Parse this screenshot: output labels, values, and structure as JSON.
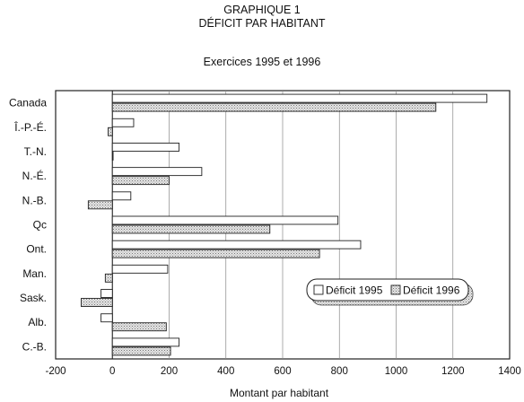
{
  "header": {
    "line1": "GRAPHIQUE 1",
    "line2": "DÉFICIT PAR HABITANT",
    "subtitle": "Exercices 1995 et 1996"
  },
  "chart_data": {
    "type": "bar",
    "orientation": "horizontal",
    "title": "GRAPHIQUE 1 — DÉFICIT PAR HABITANT",
    "subtitle": "Exercices 1995 et 1996",
    "xlabel": "Montant par habitant",
    "ylabel": "",
    "xlim": [
      -200,
      1400
    ],
    "xticks": [
      -200,
      0,
      200,
      400,
      600,
      800,
      1000,
      1200,
      1400
    ],
    "grid": true,
    "legend_position": "lower-right",
    "categories": [
      "Canada",
      "Î.-P.-É.",
      "T.-N.",
      "N.-É.",
      "N.-B.",
      "Qc",
      "Ont.",
      "Man.",
      "Sask.",
      "Alb.",
      "C.-B."
    ],
    "series": [
      {
        "name": "Déficit 1995",
        "pattern": "white",
        "values": [
          1320,
          75,
          235,
          315,
          65,
          795,
          875,
          195,
          -40,
          -40,
          235
        ]
      },
      {
        "name": "Déficit 1996",
        "pattern": "dotted",
        "values": [
          1140,
          -15,
          0,
          200,
          -85,
          555,
          730,
          -25,
          -110,
          190,
          205
        ]
      }
    ]
  }
}
